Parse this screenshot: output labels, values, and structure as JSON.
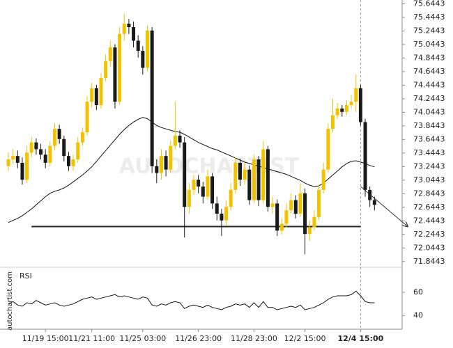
{
  "chart_data": {
    "type": "candlestick",
    "categories": [
      null,
      null,
      null,
      null,
      null,
      null,
      null,
      null,
      "11/19 15:00",
      null,
      null,
      null,
      null,
      null,
      null,
      null,
      null,
      null,
      "11/21 11:00",
      null,
      null,
      null,
      null,
      null,
      null,
      null,
      null,
      null,
      null,
      "11/25 03:00",
      null,
      null,
      null,
      null,
      null,
      null,
      null,
      null,
      null,
      null,
      null,
      "11/26 23:00",
      null,
      null,
      null,
      null,
      null,
      null,
      null,
      null,
      null,
      null,
      null,
      "11/28 23:00",
      null,
      null,
      null,
      null,
      null,
      null,
      null,
      null,
      null,
      null,
      "12/2 15:00",
      null,
      null,
      null,
      null,
      null,
      null,
      null,
      null,
      null,
      null,
      null,
      "12/4 15:00",
      null,
      null,
      null
    ],
    "open": [
      73.25,
      73.35,
      73.4,
      73.3,
      73.05,
      73.45,
      73.6,
      73.5,
      73.42,
      73.3,
      73.55,
      73.8,
      73.65,
      73.4,
      73.25,
      73.35,
      73.6,
      73.75,
      74.2,
      74.4,
      74.15,
      74.55,
      74.8,
      75.0,
      74.2,
      75.2,
      75.35,
      75.3,
      75.1,
      74.95,
      74.7,
      75.25,
      73.25,
      73.15,
      73.4,
      73.2,
      73.55,
      73.7,
      73.6,
      72.65,
      72.9,
      73.05,
      72.95,
      72.8,
      73.1,
      72.7,
      72.55,
      72.45,
      72.65,
      72.9,
      73.3,
      73.05,
      73.2,
      72.75,
      73.35,
      72.75,
      73.5,
      72.65,
      72.7,
      72.3,
      72.4,
      72.6,
      72.75,
      72.55,
      72.85,
      72.25,
      72.35,
      72.5,
      72.9,
      73.2,
      73.8,
      74.0,
      74.1,
      74.05,
      74.15,
      74.2,
      74.4,
      73.9,
      72.9,
      72.75
    ],
    "high": [
      73.45,
      73.5,
      73.48,
      73.38,
      73.55,
      73.68,
      73.66,
      73.58,
      73.5,
      73.62,
      73.88,
      73.86,
      73.7,
      73.46,
      73.42,
      73.68,
      73.82,
      74.28,
      74.48,
      74.45,
      74.62,
      74.9,
      75.1,
      75.05,
      75.3,
      75.5,
      75.42,
      75.38,
      75.18,
      75.02,
      75.32,
      75.3,
      73.35,
      73.5,
      73.48,
      73.62,
      74.2,
      73.78,
      73.68,
      73.0,
      73.12,
      73.12,
      73.02,
      73.2,
      73.15,
      72.8,
      72.62,
      72.75,
      73.0,
      73.38,
      73.36,
      73.3,
      73.26,
      73.42,
      73.4,
      73.62,
      73.55,
      72.8,
      72.76,
      72.48,
      72.7,
      72.85,
      72.82,
      73.0,
      72.92,
      72.45,
      72.6,
      72.98,
      73.3,
      73.88,
      74.25,
      74.18,
      74.15,
      74.22,
      74.3,
      74.6,
      74.45,
      73.95,
      72.95,
      72.8
    ],
    "low": [
      73.18,
      73.28,
      73.22,
      72.98,
      73.0,
      73.38,
      73.42,
      73.35,
      73.22,
      73.25,
      73.48,
      73.58,
      73.32,
      73.18,
      73.18,
      73.3,
      73.55,
      73.7,
      74.12,
      74.08,
      74.1,
      74.5,
      74.72,
      74.1,
      74.15,
      75.1,
      75.2,
      75.0,
      74.85,
      74.6,
      74.65,
      73.15,
      73.0,
      73.05,
      73.1,
      73.15,
      73.5,
      73.52,
      72.2,
      72.55,
      72.82,
      72.85,
      72.7,
      72.75,
      72.62,
      72.45,
      72.22,
      72.38,
      72.6,
      72.85,
      72.96,
      72.98,
      72.68,
      72.7,
      72.66,
      72.7,
      72.58,
      72.55,
      72.22,
      72.24,
      72.35,
      72.55,
      72.48,
      72.5,
      71.95,
      72.15,
      72.3,
      72.45,
      72.85,
      73.15,
      73.75,
      73.95,
      73.98,
      74.0,
      74.1,
      74.05,
      73.85,
      72.8,
      72.65,
      72.6
    ],
    "close": [
      73.35,
      73.4,
      73.3,
      73.05,
      73.45,
      73.6,
      73.5,
      73.42,
      73.3,
      73.55,
      73.8,
      73.65,
      73.4,
      73.25,
      73.35,
      73.6,
      73.75,
      74.2,
      74.4,
      74.15,
      74.55,
      74.8,
      75.0,
      74.2,
      75.2,
      75.35,
      75.3,
      75.1,
      74.95,
      74.7,
      75.25,
      73.25,
      73.15,
      73.4,
      73.2,
      73.55,
      73.7,
      73.6,
      72.65,
      72.9,
      73.05,
      72.95,
      72.8,
      73.1,
      72.7,
      72.55,
      72.45,
      72.65,
      72.9,
      73.3,
      73.05,
      73.2,
      72.75,
      73.35,
      72.75,
      73.5,
      72.65,
      72.7,
      72.3,
      72.4,
      72.6,
      72.75,
      72.55,
      72.85,
      72.25,
      72.35,
      72.5,
      72.9,
      73.2,
      73.8,
      74.0,
      74.1,
      74.05,
      74.15,
      74.2,
      74.4,
      73.9,
      72.9,
      72.75,
      72.68
    ],
    "up_color": "#f2c200",
    "down_color": "#1a1a1a",
    "ylim": [
      71.77,
      75.7
    ],
    "yticks": [
      75.6443,
      75.4443,
      75.2443,
      75.0443,
      74.8443,
      74.6443,
      74.4443,
      74.2443,
      74.0443,
      73.8443,
      73.6443,
      73.4443,
      73.2443,
      73.0443,
      72.8443,
      72.6443,
      72.4443,
      72.2443,
      72.0443,
      71.8443
    ],
    "ma": {
      "color": "#111111",
      "values": [
        72.42,
        72.45,
        72.48,
        72.52,
        72.57,
        72.62,
        72.68,
        72.74,
        72.8,
        72.85,
        72.88,
        72.9,
        72.93,
        72.97,
        73.02,
        73.07,
        73.12,
        73.18,
        73.24,
        73.32,
        73.4,
        73.48,
        73.56,
        73.64,
        73.72,
        73.79,
        73.85,
        73.9,
        73.94,
        73.97,
        73.95,
        73.9,
        73.85,
        73.82,
        73.8,
        73.78,
        73.76,
        73.75,
        73.72,
        73.68,
        73.64,
        73.6,
        73.57,
        73.54,
        73.51,
        73.49,
        73.46,
        73.43,
        73.4,
        73.37,
        73.34,
        73.31,
        73.29,
        73.27,
        73.25,
        73.23,
        73.21,
        73.19,
        73.17,
        73.15,
        73.13,
        73.1,
        73.07,
        73.04,
        73.0,
        72.97,
        72.95,
        72.96,
        73.0,
        73.06,
        73.12,
        73.18,
        73.24,
        73.29,
        73.32,
        73.33,
        73.31,
        73.29,
        73.26,
        73.24
      ]
    },
    "support": {
      "value": 72.36,
      "color": "#222222"
    },
    "forecast": {
      "from": 72.95,
      "to": 72.36,
      "color": "#333333"
    },
    "rsi": {
      "label": "RSI",
      "color": "#111111",
      "ylim": [
        30,
        75
      ],
      "yticks": [
        60,
        40
      ],
      "values": [
        50,
        52,
        49,
        48,
        51,
        50,
        53,
        51,
        49,
        50,
        51,
        49,
        48,
        49,
        50,
        52,
        54,
        55,
        56,
        54,
        55,
        56,
        57,
        58,
        56,
        57,
        56,
        55,
        54,
        56,
        55,
        49,
        48,
        50,
        49,
        51,
        52,
        51,
        46,
        48,
        49,
        48,
        47,
        49,
        47,
        46,
        45,
        47,
        48,
        50,
        49,
        50,
        47,
        51,
        47,
        52,
        47,
        47,
        45,
        46,
        47,
        48,
        47,
        49,
        45,
        46,
        47,
        49,
        51,
        54,
        56,
        57,
        57,
        57,
        58,
        61,
        57,
        52,
        51,
        51
      ]
    },
    "watermark": "AUTOCHARTIST",
    "site_label": "autochartist.com"
  }
}
